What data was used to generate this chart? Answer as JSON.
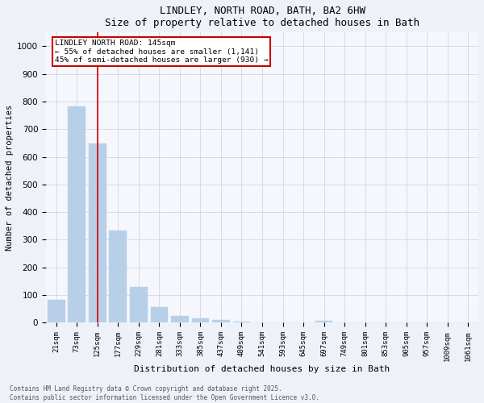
{
  "title1": "LINDLEY, NORTH ROAD, BATH, BA2 6HW",
  "title2": "Size of property relative to detached houses in Bath",
  "categories": [
    "21sqm",
    "73sqm",
    "125sqm",
    "177sqm",
    "229sqm",
    "281sqm",
    "333sqm",
    "385sqm",
    "437sqm",
    "489sqm",
    "541sqm",
    "593sqm",
    "645sqm",
    "697sqm",
    "749sqm",
    "801sqm",
    "853sqm",
    "905sqm",
    "957sqm",
    "1009sqm",
    "1061sqm"
  ],
  "values": [
    83,
    783,
    648,
    333,
    130,
    57,
    25,
    14,
    8,
    4,
    1,
    0,
    0,
    5,
    0,
    0,
    0,
    0,
    0,
    0,
    0
  ],
  "bar_color": "#b8cfe8",
  "bar_edgecolor": "#b8cfe8",
  "redline_x": 2.0,
  "ylabel": "Number of detached properties",
  "xlabel": "Distribution of detached houses by size in Bath",
  "ylim": [
    0,
    1050
  ],
  "yticks": [
    0,
    100,
    200,
    300,
    400,
    500,
    600,
    700,
    800,
    900,
    1000
  ],
  "annotation_title": "LINDLEY NORTH ROAD: 145sqm",
  "annotation_line1": "← 55% of detached houses are smaller (1,141)",
  "annotation_line2": "45% of semi-detached houses are larger (930) →",
  "annotation_box_color": "#cc0000",
  "footer1": "Contains HM Land Registry data © Crown copyright and database right 2025.",
  "footer2": "Contains public sector information licensed under the Open Government Licence v3.0.",
  "bg_color": "#eef2f8",
  "plot_bg_color": "#f5f7fc"
}
